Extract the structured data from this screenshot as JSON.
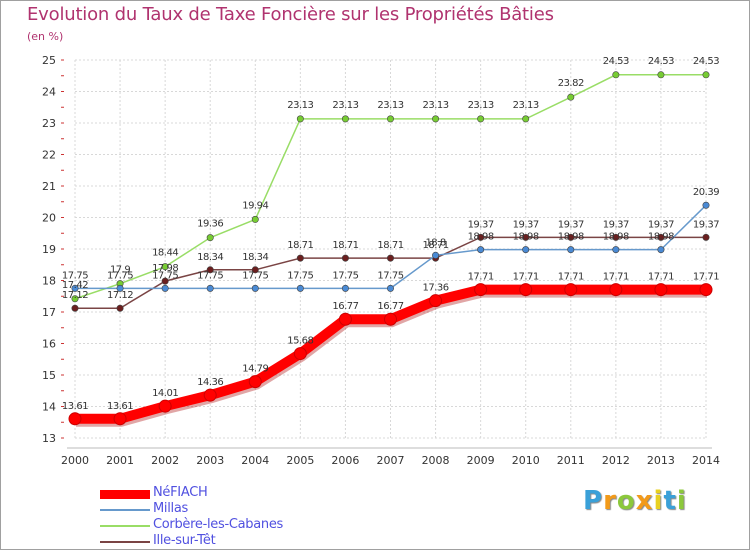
{
  "title": "Evolution du Taux de Taxe Foncière sur les Propriétés Bâties",
  "unit_label": "(en %)",
  "logo": {
    "letters": [
      "P",
      "r",
      "o",
      "x",
      "i",
      "t",
      "i"
    ],
    "colors": [
      "#3aa0d8",
      "#f29a1a",
      "#8cc83c",
      "#f29a1a",
      "#e8d020",
      "#3aa0d8",
      "#8cc83c"
    ]
  },
  "chart_data": {
    "type": "line",
    "x": [
      2000,
      2001,
      2002,
      2003,
      2004,
      2005,
      2006,
      2007,
      2008,
      2009,
      2010,
      2011,
      2012,
      2013,
      2014
    ],
    "ylim": [
      13,
      25
    ],
    "yticks": [
      13,
      14,
      15,
      16,
      17,
      18,
      19,
      20,
      21,
      22,
      23,
      24,
      25
    ],
    "grid": true,
    "legend_position": "bottom-left",
    "series": [
      {
        "name": "NéFIACH",
        "color": "#ff0000",
        "legend_color": "#5050e0",
        "emphasis": true,
        "values": [
          13.61,
          13.61,
          14.01,
          14.36,
          14.79,
          15.68,
          16.77,
          16.77,
          17.36,
          17.71,
          17.71,
          17.71,
          17.71,
          17.71,
          17.71
        ],
        "labels": [
          "13.61",
          "13.61",
          "14.01",
          "14.36",
          "14.79",
          "15.68",
          "16.77",
          "16.77",
          "17.36",
          "17.71",
          "17.71",
          "17.71",
          "17.71",
          "17.71",
          "17.71"
        ]
      },
      {
        "name": "Millas",
        "color": "#6699cc",
        "marker": "#4a8ad4",
        "legend_color": "#5050e0",
        "values": [
          17.75,
          17.75,
          17.75,
          17.75,
          17.75,
          17.75,
          17.75,
          17.75,
          18.8,
          18.98,
          18.98,
          18.98,
          18.98,
          18.98,
          20.39
        ],
        "labels": [
          "17.75",
          "17.75",
          "17.75",
          "17.75",
          "17.75",
          "17.75",
          "17.75",
          "17.75",
          "18.8",
          "18.98",
          "18.98",
          "18.98",
          "18.98",
          "18.98",
          "20.39"
        ]
      },
      {
        "name": "Corbère-les-Cabanes",
        "color": "#99dd66",
        "marker": "#77cc33",
        "legend_color": "#5050e0",
        "values": [
          17.42,
          17.9,
          18.44,
          19.36,
          19.94,
          23.13,
          23.13,
          23.13,
          23.13,
          23.13,
          23.13,
          23.82,
          24.53,
          24.53,
          24.53
        ],
        "labels": [
          "17.42",
          "17.9",
          "18.44",
          "19.36",
          "19.94",
          "23.13",
          "23.13",
          "23.13",
          "23.13",
          "23.13",
          "23.13",
          "23.82",
          "24.53",
          "24.53",
          "24.53"
        ]
      },
      {
        "name": "Ille-sur-Têt",
        "color": "#7a4444",
        "marker": "#6b1f1f",
        "legend_color": "#5050e0",
        "values": [
          17.12,
          17.12,
          17.98,
          18.34,
          18.34,
          18.71,
          18.71,
          18.71,
          18.71,
          19.37,
          19.37,
          19.37,
          19.37,
          19.37,
          19.37
        ],
        "labels": [
          "17.12",
          "17.12",
          "17.98",
          "18.34",
          "18.34",
          "18.71",
          "18.71",
          "18.71",
          "18.71",
          "19.37",
          "19.37",
          "19.37",
          "19.37",
          "19.37",
          "19.37"
        ]
      }
    ]
  }
}
